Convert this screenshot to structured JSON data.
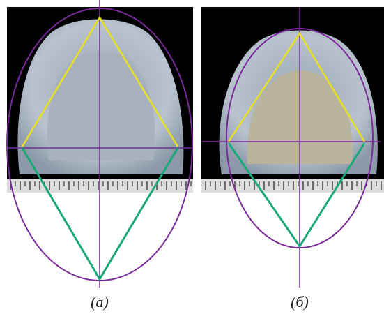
{
  "panels": [
    {
      "label": "(a)"
    },
    {
      "label": "(б)"
    }
  ]
}
